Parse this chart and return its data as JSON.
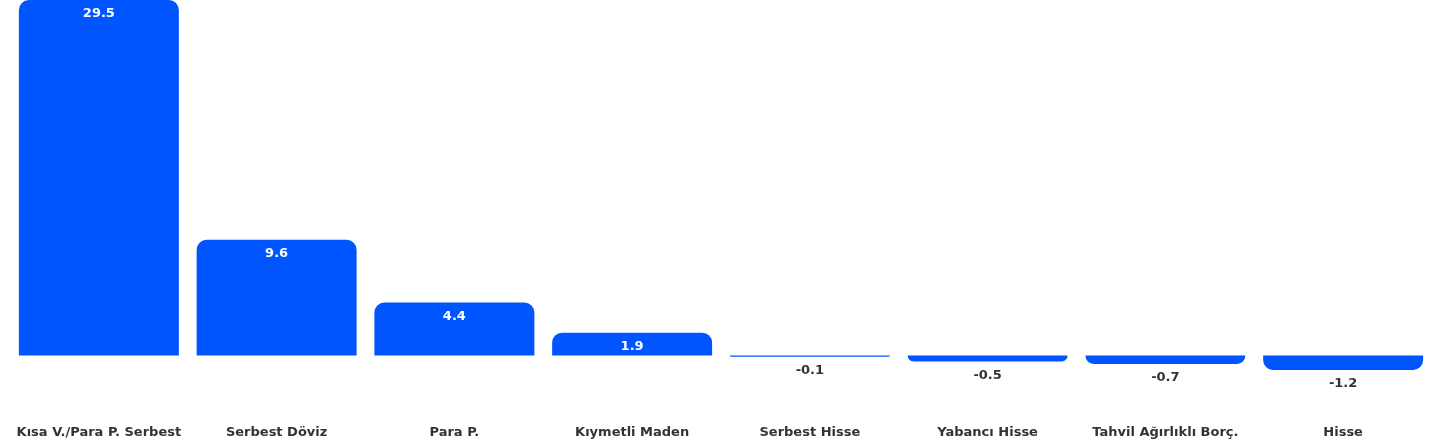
{
  "chart_data": {
    "type": "bar",
    "categories": [
      "Kısa V./Para P. Serbest",
      "Serbest Döviz",
      "Para P.",
      "Kıymetli Maden",
      "Serbest Hisse",
      "Yabancı Hisse",
      "Tahvil Ağırlıklı Borç.",
      "Hisse"
    ],
    "values": [
      29.5,
      9.6,
      4.4,
      1.9,
      -0.1,
      -0.5,
      -0.7,
      -1.2
    ],
    "color": "#0055ff",
    "data_labels": true
  }
}
